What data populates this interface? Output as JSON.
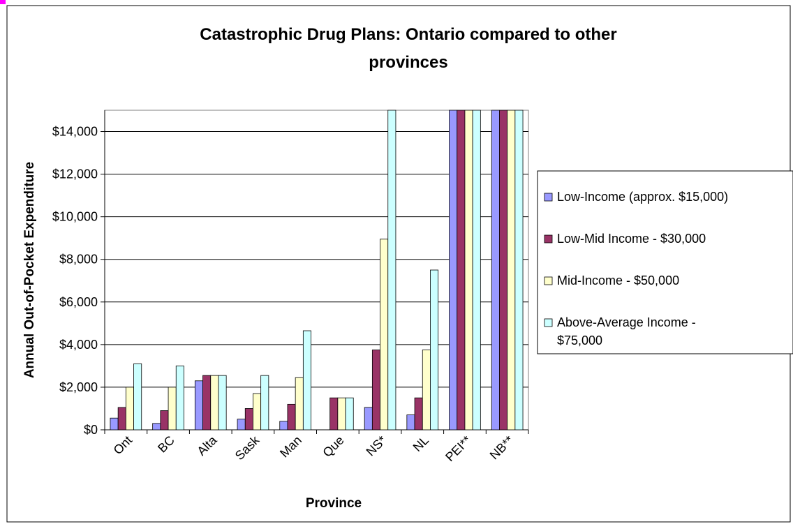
{
  "chart_data": {
    "type": "bar",
    "title_lines": [
      "Catastrophic Drug Plans: Ontario compared to other",
      "provinces"
    ],
    "xlabel": "Province",
    "ylabel": "Annual Out-of-Pocket Expenditure",
    "ylim": [
      0,
      15000
    ],
    "yticks": [
      0,
      2000,
      4000,
      6000,
      8000,
      10000,
      12000,
      14000
    ],
    "ytick_labels": [
      "$0",
      "$2,000",
      "$4,000",
      "$6,000",
      "$8,000",
      "$10,000",
      "$12,000",
      "$14,000"
    ],
    "categories": [
      "Ont",
      "BC",
      "Alta",
      "Sask",
      "Man",
      "Que",
      "NS*",
      "NL",
      "PEI**",
      "NB**"
    ],
    "series": [
      {
        "name": "Low-Income (approx. $15,000)",
        "color": "#9999FF",
        "values": [
          550,
          300,
          2300,
          500,
          400,
          0,
          1050,
          700,
          15000,
          15000
        ]
      },
      {
        "name": "Low-Mid Income - $30,000",
        "color": "#993366",
        "values": [
          1050,
          900,
          2550,
          1000,
          1200,
          1500,
          3750,
          1500,
          15000,
          15000
        ]
      },
      {
        "name": "Mid-Income - $50,000",
        "color": "#FFFFCC",
        "values": [
          2000,
          2000,
          2550,
          1700,
          2450,
          1500,
          8950,
          3750,
          15000,
          15000
        ]
      },
      {
        "name": "Above-Average Income - $75,000",
        "legend_lines": [
          "Above-Average Income -",
          "$75,000"
        ],
        "color": "#CCFFFF",
        "values": [
          3100,
          3000,
          2550,
          2550,
          4650,
          1500,
          15000,
          7500,
          15000,
          15000
        ]
      }
    ],
    "grid": true,
    "legend_position": "right"
  }
}
